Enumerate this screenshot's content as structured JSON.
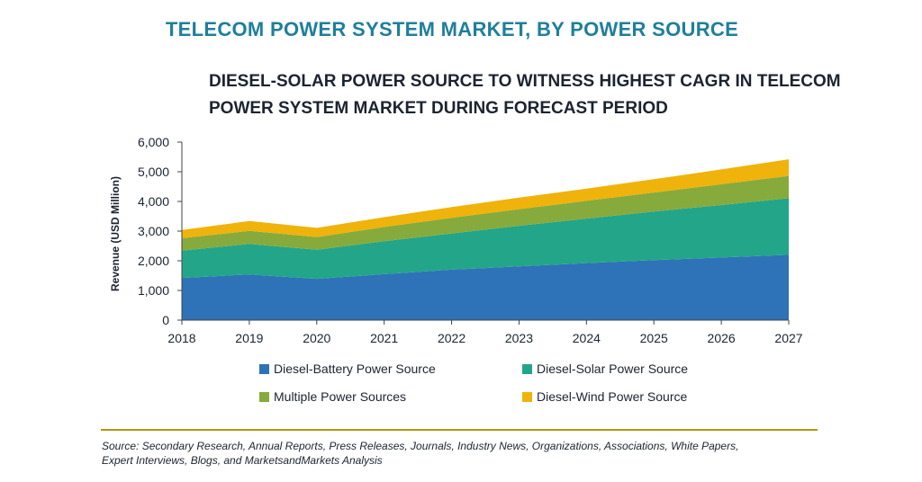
{
  "page": {
    "heading": "TELECOM POWER SYSTEM MARKET, BY POWER SOURCE",
    "source_line1": "Source: Secondary Research, Annual Reports, Press Releases, Journals, Industry News, Organizations, Associations, White Papers,",
    "source_line2": "Expert Interviews, Blogs, and MarketsandMarkets Analysis"
  },
  "chart_data": {
    "type": "area",
    "stacked": true,
    "title_line1": "DIESEL-SOLAR POWER SOURCE TO WITNESS HIGHEST CAGR IN TELECOM",
    "title_line2": "POWER SYSTEM MARKET DURING FORECAST PERIOD",
    "xlabel": "",
    "ylabel": "Revenue (USD Million)",
    "categories": [
      "2018",
      "2019",
      "2020",
      "2021",
      "2022",
      "2023",
      "2024",
      "2025",
      "2026",
      "2027"
    ],
    "ylim": [
      0,
      6000
    ],
    "yticks": [
      0,
      1000,
      2000,
      3000,
      4000,
      5000,
      6000
    ],
    "ytick_labels": [
      "0",
      "1,000",
      "2,000",
      "3,000",
      "4,000",
      "5,000",
      "6,000"
    ],
    "grid": false,
    "legend_position": "bottom",
    "series": [
      {
        "name": "Diesel-Battery Power Source",
        "color": "#2e72b8",
        "values": [
          1420,
          1540,
          1390,
          1550,
          1700,
          1810,
          1920,
          2020,
          2110,
          2200
        ]
      },
      {
        "name": "Diesel-Solar Power Source",
        "color": "#23a589",
        "values": [
          920,
          1030,
          980,
          1110,
          1220,
          1370,
          1500,
          1640,
          1770,
          1910
        ]
      },
      {
        "name": "Multiple Power Sources",
        "color": "#86ab3c",
        "values": [
          420,
          440,
          430,
          480,
          530,
          560,
          600,
          640,
          700,
          750
        ]
      },
      {
        "name": "Diesel-Wind Power Source",
        "color": "#efb30c",
        "values": [
          280,
          330,
          310,
          330,
          360,
          390,
          410,
          450,
          500,
          560
        ]
      }
    ]
  }
}
